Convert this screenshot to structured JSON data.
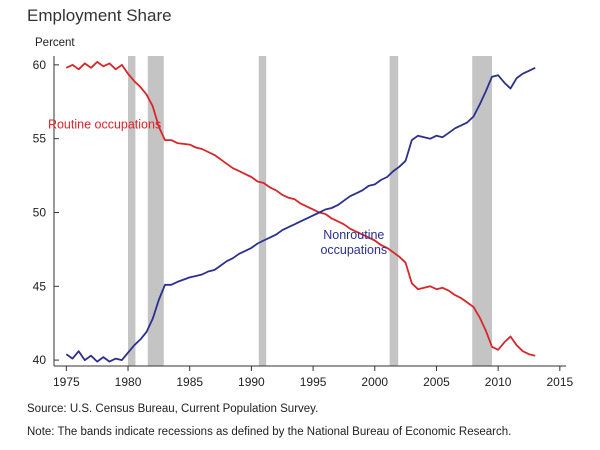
{
  "title": "Employment Share",
  "footnotes": {
    "source": "Source: U.S. Census Bureau, Current Population Survey.",
    "note": "Note: The bands indicate recessions as defined by the National Bureau of Economic Research."
  },
  "chart_data": {
    "type": "line",
    "title": "Employment Share",
    "ylabel": "Percent",
    "xlabel": "",
    "xlim": [
      1974,
      2015.5
    ],
    "ylim": [
      39.6,
      60.6
    ],
    "xticks": [
      1975,
      1980,
      1985,
      1990,
      1995,
      2000,
      2005,
      2010,
      2015
    ],
    "yticks": [
      40,
      45,
      50,
      55,
      60
    ],
    "grid": false,
    "legend": "inline labels",
    "recessions": [
      [
        1980.0,
        1980.6
      ],
      [
        1981.6,
        1982.9
      ],
      [
        1990.6,
        1991.2
      ],
      [
        2001.2,
        2001.9
      ],
      [
        2007.9,
        2009.5
      ]
    ],
    "series": [
      {
        "name": "Routine occupations",
        "label_lines": [
          "Routine occupations"
        ],
        "label_at": [
          1978.1,
          55.7
        ],
        "color": "#d9262a",
        "points": [
          [
            1975.0,
            59.8
          ],
          [
            1975.5,
            60.0
          ],
          [
            1976.0,
            59.7
          ],
          [
            1976.5,
            60.1
          ],
          [
            1977.0,
            59.8
          ],
          [
            1977.5,
            60.2
          ],
          [
            1978.0,
            59.9
          ],
          [
            1978.5,
            60.1
          ],
          [
            1979.0,
            59.7
          ],
          [
            1979.5,
            60.0
          ],
          [
            1980.0,
            59.4
          ],
          [
            1980.5,
            58.9
          ],
          [
            1981.0,
            58.5
          ],
          [
            1981.5,
            58.0
          ],
          [
            1982.0,
            57.2
          ],
          [
            1982.5,
            55.8
          ],
          [
            1983.0,
            54.9
          ],
          [
            1983.5,
            54.9
          ],
          [
            1984.0,
            54.7
          ],
          [
            1985.0,
            54.6
          ],
          [
            1985.5,
            54.4
          ],
          [
            1986.0,
            54.3
          ],
          [
            1986.5,
            54.1
          ],
          [
            1987.0,
            53.9
          ],
          [
            1987.5,
            53.6
          ],
          [
            1988.0,
            53.3
          ],
          [
            1988.5,
            53.0
          ],
          [
            1989.0,
            52.8
          ],
          [
            1989.5,
            52.6
          ],
          [
            1990.0,
            52.4
          ],
          [
            1990.5,
            52.1
          ],
          [
            1991.0,
            52.0
          ],
          [
            1991.5,
            51.7
          ],
          [
            1992.0,
            51.5
          ],
          [
            1992.5,
            51.2
          ],
          [
            1993.0,
            51.0
          ],
          [
            1993.5,
            50.9
          ],
          [
            1994.0,
            50.6
          ],
          [
            1994.5,
            50.4
          ],
          [
            1995.0,
            50.2
          ],
          [
            1995.5,
            50.0
          ],
          [
            1996.0,
            49.9
          ],
          [
            1996.5,
            49.6
          ],
          [
            1997.0,
            49.4
          ],
          [
            1997.5,
            49.2
          ],
          [
            1998.0,
            48.9
          ],
          [
            1998.5,
            48.7
          ],
          [
            1999.0,
            48.5
          ],
          [
            1999.5,
            48.3
          ],
          [
            2000.0,
            48.1
          ],
          [
            2000.5,
            47.8
          ],
          [
            2001.0,
            47.6
          ],
          [
            2001.5,
            47.3
          ],
          [
            2002.0,
            47.0
          ],
          [
            2002.5,
            46.6
          ],
          [
            2003.0,
            45.2
          ],
          [
            2003.5,
            44.8
          ],
          [
            2004.0,
            44.9
          ],
          [
            2004.5,
            45.0
          ],
          [
            2005.0,
            44.8
          ],
          [
            2005.5,
            44.9
          ],
          [
            2006.0,
            44.7
          ],
          [
            2006.5,
            44.4
          ],
          [
            2007.0,
            44.2
          ],
          [
            2007.5,
            43.9
          ],
          [
            2008.0,
            43.6
          ],
          [
            2008.5,
            42.9
          ],
          [
            2009.0,
            42.0
          ],
          [
            2009.5,
            40.9
          ],
          [
            2010.0,
            40.7
          ],
          [
            2010.5,
            41.2
          ],
          [
            2011.0,
            41.6
          ],
          [
            2011.5,
            41.0
          ],
          [
            2012.0,
            40.6
          ],
          [
            2012.5,
            40.4
          ],
          [
            2013.0,
            40.3
          ]
        ]
      },
      {
        "name": "Nonroutine occupations",
        "label_lines": [
          "Nonroutine",
          "occupations"
        ],
        "label_at": [
          1998.3,
          48.2
        ],
        "color": "#2b2f8f",
        "points": [
          [
            1975.0,
            40.4
          ],
          [
            1975.5,
            40.1
          ],
          [
            1976.0,
            40.6
          ],
          [
            1976.5,
            40.0
          ],
          [
            1977.0,
            40.3
          ],
          [
            1977.5,
            39.9
          ],
          [
            1978.0,
            40.2
          ],
          [
            1978.5,
            39.9
          ],
          [
            1979.0,
            40.1
          ],
          [
            1979.5,
            40.0
          ],
          [
            1980.0,
            40.5
          ],
          [
            1980.5,
            41.0
          ],
          [
            1981.0,
            41.4
          ],
          [
            1981.5,
            41.9
          ],
          [
            1982.0,
            42.8
          ],
          [
            1982.5,
            44.1
          ],
          [
            1983.0,
            45.1
          ],
          [
            1983.5,
            45.1
          ],
          [
            1984.0,
            45.3
          ],
          [
            1985.0,
            45.6
          ],
          [
            1985.5,
            45.7
          ],
          [
            1986.0,
            45.8
          ],
          [
            1986.5,
            46.0
          ],
          [
            1987.0,
            46.1
          ],
          [
            1987.5,
            46.4
          ],
          [
            1988.0,
            46.7
          ],
          [
            1988.5,
            46.9
          ],
          [
            1989.0,
            47.2
          ],
          [
            1989.5,
            47.4
          ],
          [
            1990.0,
            47.6
          ],
          [
            1990.5,
            47.9
          ],
          [
            1991.0,
            48.1
          ],
          [
            1991.5,
            48.3
          ],
          [
            1992.0,
            48.5
          ],
          [
            1992.5,
            48.8
          ],
          [
            1993.0,
            49.0
          ],
          [
            1993.5,
            49.2
          ],
          [
            1994.0,
            49.4
          ],
          [
            1994.5,
            49.6
          ],
          [
            1995.0,
            49.8
          ],
          [
            1995.5,
            50.0
          ],
          [
            1996.0,
            50.2
          ],
          [
            1996.5,
            50.3
          ],
          [
            1997.0,
            50.5
          ],
          [
            1997.5,
            50.8
          ],
          [
            1998.0,
            51.1
          ],
          [
            1998.5,
            51.3
          ],
          [
            1999.0,
            51.5
          ],
          [
            1999.5,
            51.8
          ],
          [
            2000.0,
            51.9
          ],
          [
            2000.5,
            52.2
          ],
          [
            2001.0,
            52.4
          ],
          [
            2001.5,
            52.8
          ],
          [
            2002.0,
            53.1
          ],
          [
            2002.5,
            53.5
          ],
          [
            2003.0,
            54.9
          ],
          [
            2003.5,
            55.2
          ],
          [
            2004.0,
            55.1
          ],
          [
            2004.5,
            55.0
          ],
          [
            2005.0,
            55.2
          ],
          [
            2005.5,
            55.1
          ],
          [
            2006.0,
            55.4
          ],
          [
            2006.5,
            55.7
          ],
          [
            2007.0,
            55.9
          ],
          [
            2007.5,
            56.1
          ],
          [
            2008.0,
            56.5
          ],
          [
            2008.5,
            57.3
          ],
          [
            2009.0,
            58.2
          ],
          [
            2009.5,
            59.2
          ],
          [
            2010.0,
            59.3
          ],
          [
            2010.5,
            58.8
          ],
          [
            2011.0,
            58.4
          ],
          [
            2011.5,
            59.1
          ],
          [
            2012.0,
            59.4
          ],
          [
            2012.5,
            59.6
          ],
          [
            2013.0,
            59.8
          ]
        ]
      }
    ]
  }
}
